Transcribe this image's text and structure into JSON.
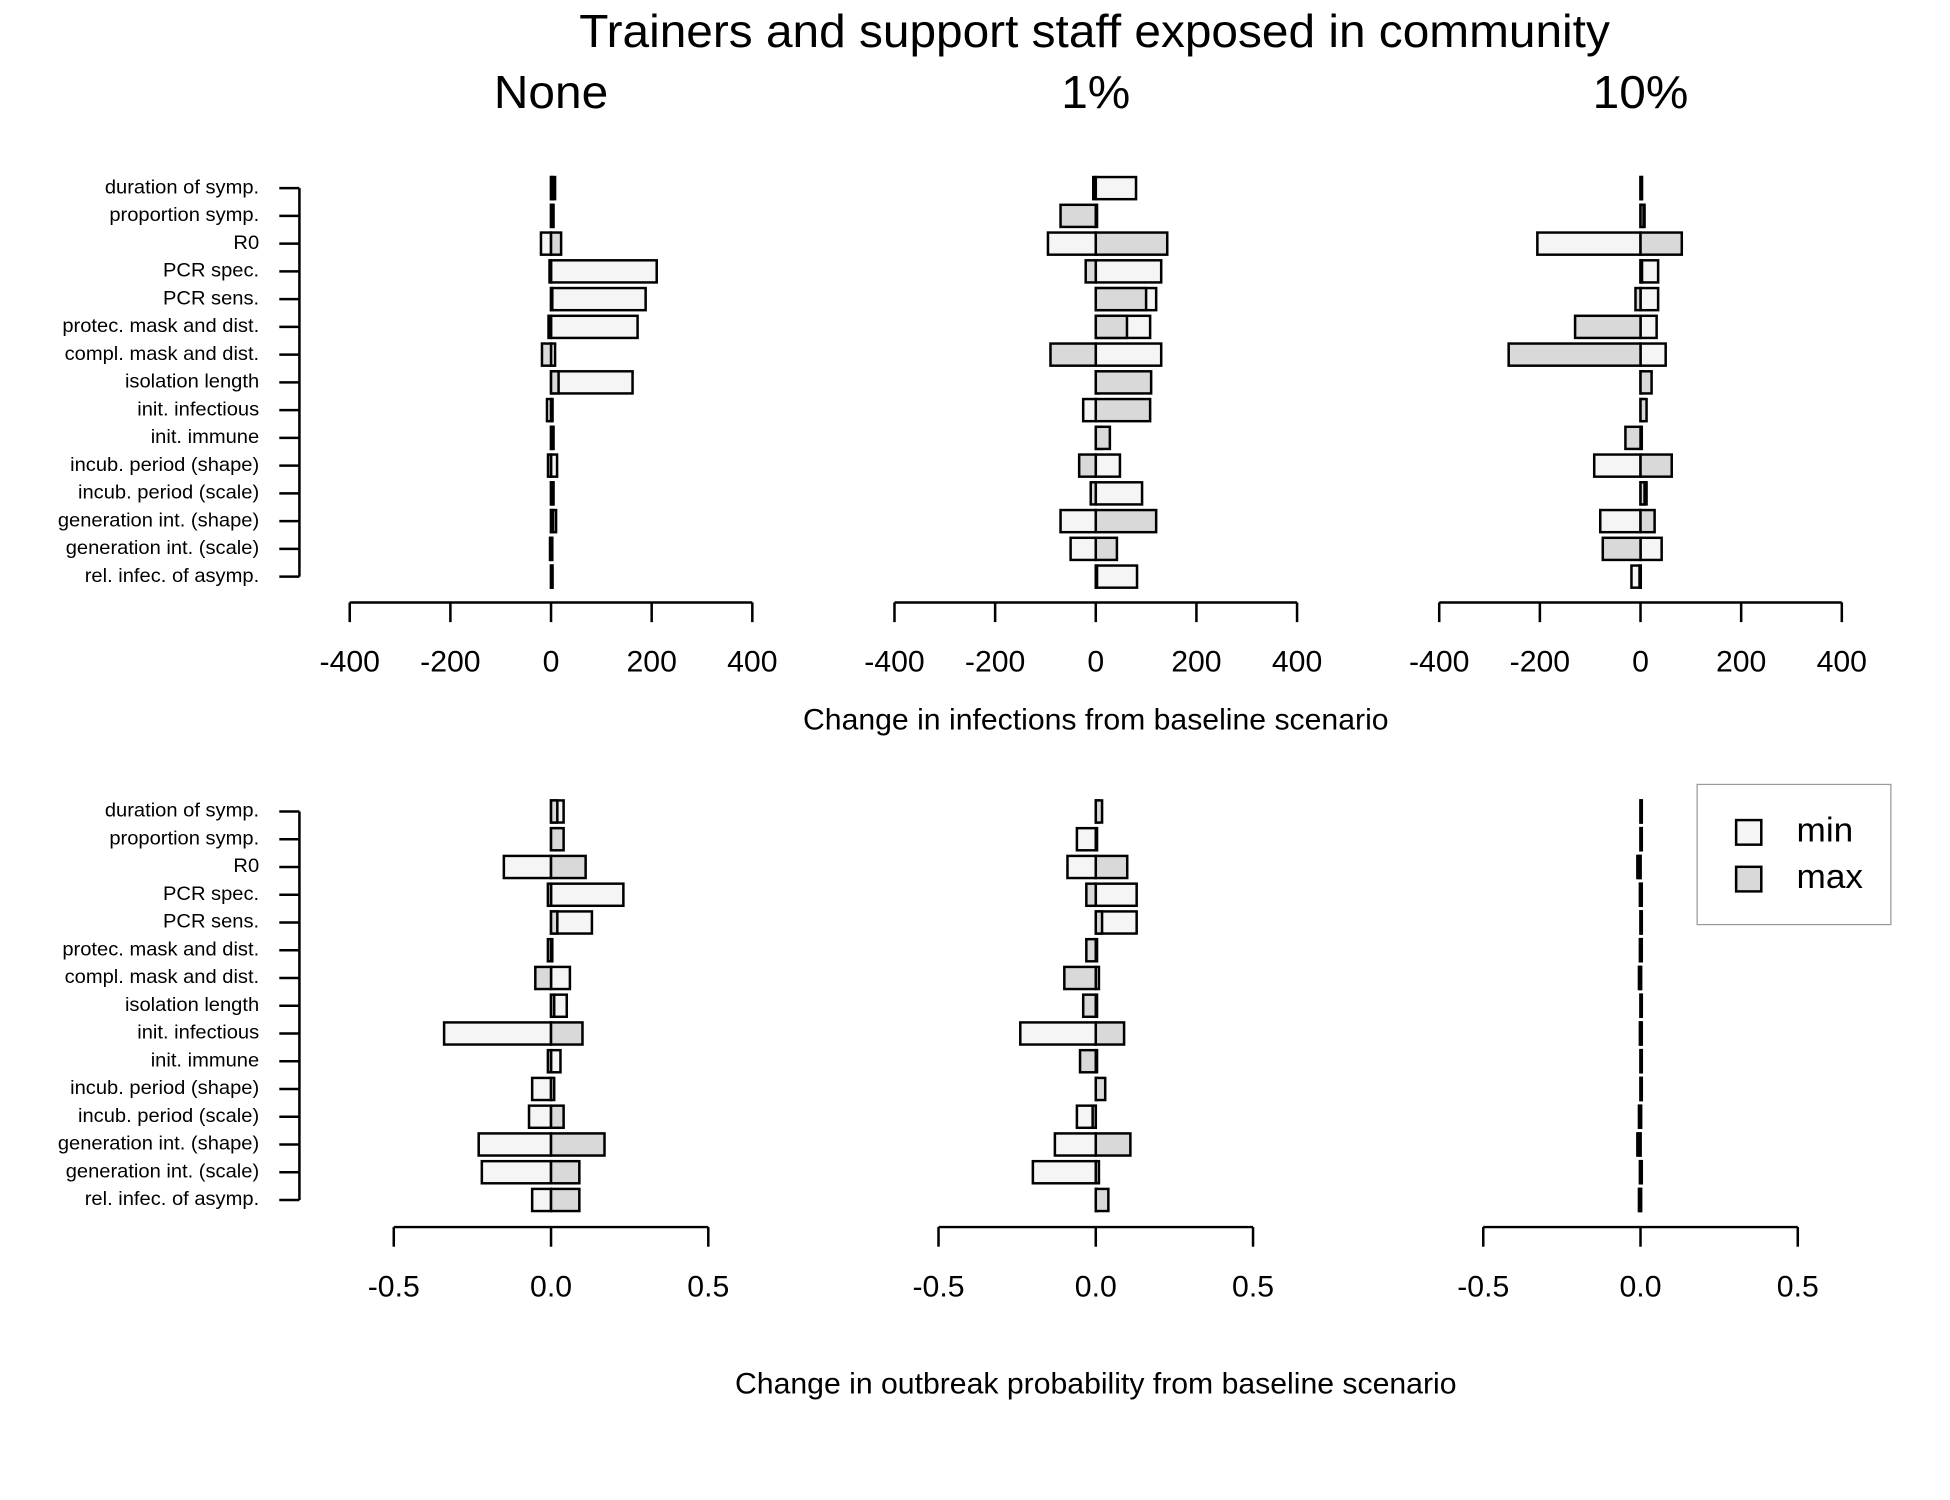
{
  "title": "Trainers and support staff exposed in community",
  "categories": [
    "duration of symp.",
    "proportion symp.",
    "R0",
    "PCR spec.",
    "PCR sens.",
    "protec. mask and dist.",
    "compl. mask and dist.",
    "isolation length",
    "init. infectious",
    "init. immune",
    "incub. period (shape)",
    "incub. period (scale)",
    "generation int. (shape)",
    "generation int. (scale)",
    "rel. infec. of asymp."
  ],
  "chart_data": [
    {
      "type": "bar",
      "title": "None",
      "xlim": [
        -400,
        400
      ],
      "xticks": [
        -400,
        -200,
        0,
        200,
        400
      ],
      "series": [
        {
          "name": "min",
          "color": "#f5f5f5",
          "values": [
            8,
            5,
            -20,
            210,
            188,
            172,
            8,
            162,
            -8,
            5,
            12,
            5,
            10,
            2,
            3
          ]
        },
        {
          "name": "max",
          "color": "#d9d9d9",
          "values": [
            4,
            3,
            20,
            -3,
            2,
            -5,
            -18,
            15,
            3,
            3,
            -6,
            3,
            4,
            -2,
            2
          ]
        }
      ]
    },
    {
      "type": "bar",
      "title": "1%",
      "xlabel": "Change in infections from baseline scenario",
      "xlim": [
        -400,
        400
      ],
      "xticks": [
        -400,
        -200,
        0,
        200,
        400
      ],
      "series": [
        {
          "name": "min",
          "color": "#f5f5f5",
          "values": [
            80,
            2,
            -95,
            130,
            120,
            108,
            130,
            5,
            -25,
            12,
            48,
            92,
            -70,
            -50,
            82
          ]
        },
        {
          "name": "max",
          "color": "#d9d9d9",
          "values": [
            -5,
            -70,
            142,
            -20,
            100,
            62,
            -90,
            110,
            108,
            28,
            -33,
            -10,
            120,
            42,
            2
          ]
        }
      ]
    },
    {
      "type": "bar",
      "title": "10%",
      "xlim": [
        -400,
        400
      ],
      "xticks": [
        -400,
        -200,
        0,
        200,
        400
      ],
      "series": [
        {
          "name": "min",
          "color": "#f5f5f5",
          "values": [
            3,
            8,
            -205,
            35,
            35,
            32,
            50,
            3,
            6,
            2,
            -92,
            12,
            -80,
            42,
            -18
          ]
        },
        {
          "name": "max",
          "color": "#d9d9d9",
          "values": [
            2,
            6,
            82,
            3,
            -10,
            -130,
            -262,
            22,
            12,
            -30,
            62,
            8,
            28,
            -75,
            -2
          ]
        }
      ]
    },
    {
      "type": "bar",
      "xlim": [
        -0.64,
        0.64
      ],
      "xticks": [
        {
          "value": -0.5,
          "label": "-0.5"
        },
        {
          "value": 0,
          "label": "0.0"
        },
        {
          "value": 0.5,
          "label": "0.5"
        }
      ],
      "series": [
        {
          "name": "min",
          "color": "#f5f5f5",
          "values": [
            0.04,
            0.03,
            -0.15,
            0.23,
            0.13,
            -0.01,
            0.06,
            0.05,
            -0.34,
            0.03,
            -0.06,
            -0.07,
            -0.23,
            -0.22,
            -0.06
          ]
        },
        {
          "name": "max",
          "color": "#d9d9d9",
          "values": [
            0.02,
            0.04,
            0.11,
            -0.01,
            0.02,
            0,
            -0.05,
            0.01,
            0.1,
            -0.01,
            0.01,
            0.04,
            0.17,
            0.09,
            0.09
          ]
        }
      ]
    },
    {
      "type": "bar",
      "xlabel": "Change in outbreak probability from baseline scenario",
      "xlim": [
        -0.64,
        0.64
      ],
      "xticks": [
        {
          "value": -0.5,
          "label": "-0.5"
        },
        {
          "value": 0,
          "label": "0.0"
        },
        {
          "value": 0.5,
          "label": "0.5"
        }
      ],
      "series": [
        {
          "name": "min",
          "color": "#f5f5f5",
          "values": [
            0.01,
            -0.06,
            -0.09,
            0.13,
            0.13,
            0,
            0.01,
            0,
            -0.24,
            0,
            0,
            -0.06,
            -0.13,
            -0.2,
            0
          ]
        },
        {
          "name": "max",
          "color": "#d9d9d9",
          "values": [
            0.02,
            0,
            0.1,
            -0.03,
            0.02,
            -0.03,
            -0.1,
            -0.04,
            0.09,
            -0.05,
            0.03,
            -0.01,
            0.11,
            0.01,
            0.04
          ]
        }
      ]
    },
    {
      "type": "bar",
      "legend": "top-right",
      "xlim": [
        -0.64,
        0.64
      ],
      "xticks": [
        {
          "value": -0.5,
          "label": "-0.5"
        },
        {
          "value": 0,
          "label": "0.0"
        },
        {
          "value": 0.5,
          "label": "0.5"
        }
      ],
      "series": [
        {
          "name": "min",
          "color": "#f5f5f5",
          "values": [
            0.003,
            0.002,
            -0.01,
            0.002,
            0.002,
            0.002,
            -0.005,
            0.002,
            0.002,
            0.002,
            0.003,
            -0.005,
            -0.01,
            0.002,
            -0.005
          ]
        },
        {
          "name": "max",
          "color": "#d9d9d9",
          "values": [
            0.002,
            0.002,
            -0.005,
            -0.002,
            0.002,
            -0.002,
            -0.002,
            0.002,
            -0.002,
            0.002,
            0.002,
            -0.002,
            -0.005,
            -0.002,
            -0.002
          ]
        }
      ]
    }
  ]
}
